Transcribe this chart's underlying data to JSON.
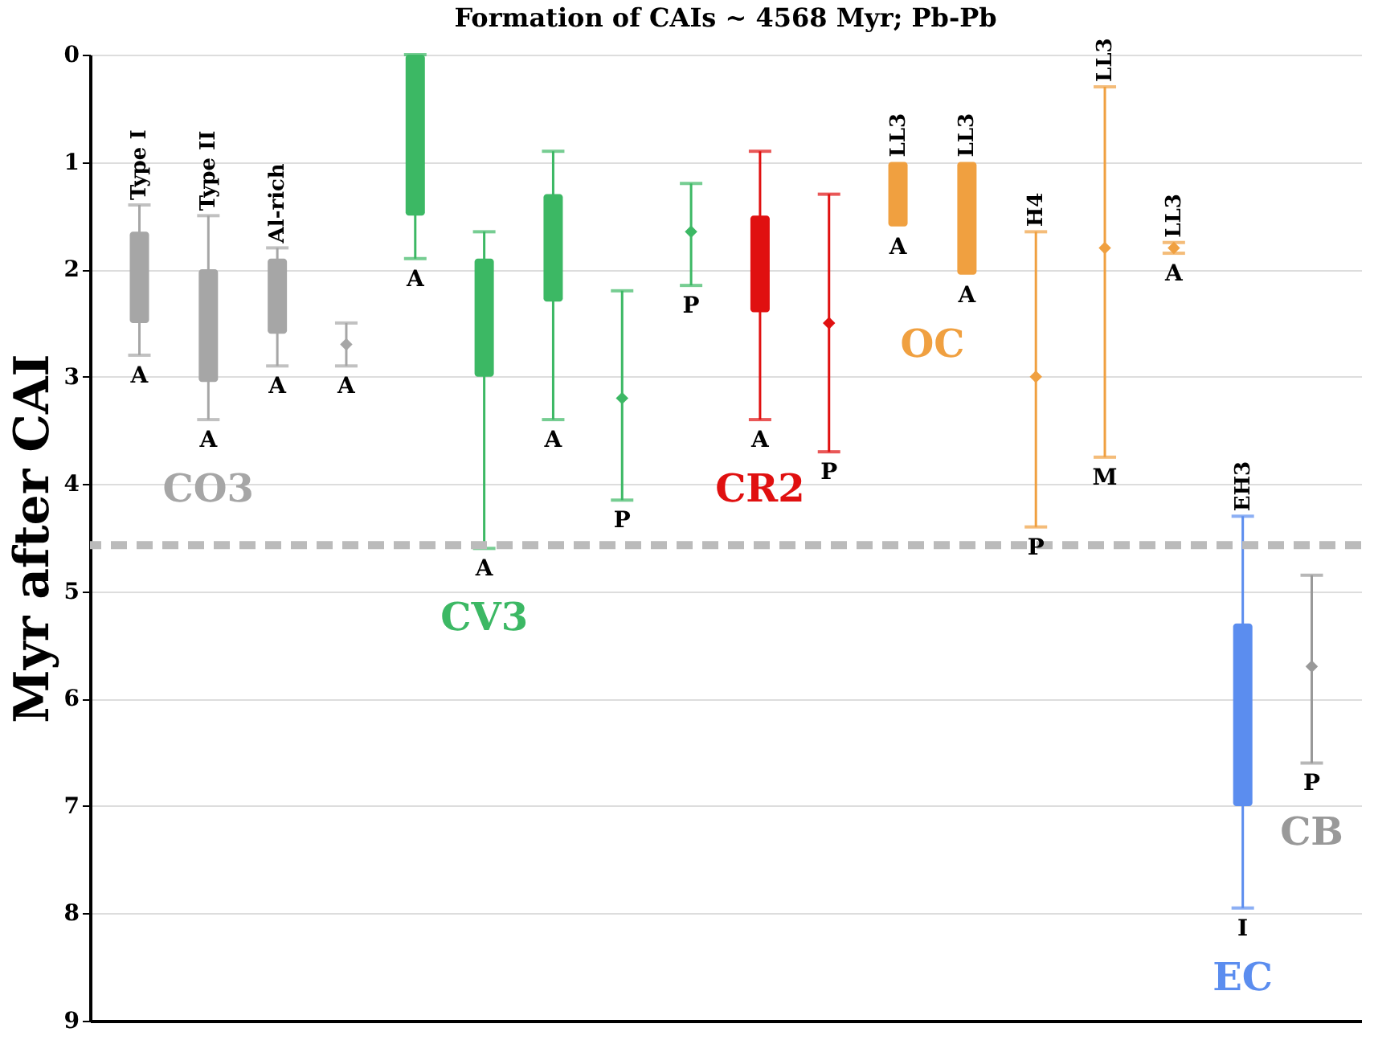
{
  "chart_data": {
    "type": "bar",
    "title": "Formation of CAIs ~ 4568 Myr; Pb-Pb",
    "ylabel": "Myr after CAI",
    "categories": [
      "Type I",
      "Type II",
      "Al-rich",
      null,
      null,
      null,
      null,
      null,
      null,
      null,
      null,
      "LL3",
      "LL3",
      "H4",
      "LL3",
      "LL3",
      "EH3",
      null
    ],
    "series": [
      {
        "name": "CO3",
        "color": "#a6a6a6",
        "base": [
          1.65,
          2.0,
          1.9,
          null,
          null,
          null,
          null,
          null,
          null,
          null,
          null,
          null,
          null,
          null,
          null,
          null,
          null,
          null
        ],
        "values": [
          0.85,
          1.05,
          0.7,
          null,
          null,
          null,
          null,
          null,
          null,
          null,
          null,
          null,
          null,
          null,
          null,
          null,
          null,
          null
        ],
        "errors": [
          [
            1.4,
            2.8
          ],
          [
            1.5,
            3.4
          ],
          [
            1.8,
            2.9
          ],
          null,
          null,
          null,
          null,
          null,
          null,
          null,
          null,
          null,
          null,
          null,
          null,
          null,
          null,
          null
        ]
      },
      {
        "type": "scatter",
        "color": "#a6a6a6",
        "values": [
          null,
          null,
          null,
          2.7,
          null,
          null,
          null,
          null,
          null,
          null,
          null,
          null,
          null,
          null,
          null,
          null,
          null,
          null
        ],
        "errors": [
          null,
          null,
          null,
          [
            2.5,
            2.9
          ],
          null,
          null,
          null,
          null,
          null,
          null,
          null,
          null,
          null,
          null,
          null,
          null,
          null,
          null
        ]
      },
      {
        "name": "CV3",
        "color": "#3cb864",
        "base": [
          null,
          null,
          null,
          null,
          0,
          1.9,
          1.3,
          null,
          null,
          null,
          null,
          null,
          null,
          null,
          null,
          null,
          null,
          null
        ],
        "values": [
          null,
          null,
          null,
          null,
          1.5,
          1.1,
          1.0,
          null,
          null,
          null,
          null,
          null,
          null,
          null,
          null,
          null,
          null,
          null
        ],
        "errors": [
          null,
          null,
          null,
          null,
          [
            0,
            1.9
          ],
          [
            1.65,
            4.6
          ],
          [
            0.9,
            3.4
          ],
          null,
          null,
          null,
          null,
          null,
          null,
          null,
          null,
          null,
          null,
          null
        ]
      },
      {
        "type": "scatter",
        "color": "#3cb864",
        "values": [
          null,
          null,
          null,
          null,
          null,
          null,
          null,
          3.2,
          1.65,
          null,
          null,
          null,
          null,
          null,
          null,
          null,
          null,
          null
        ],
        "errors": [
          null,
          null,
          null,
          null,
          null,
          null,
          null,
          [
            2.2,
            4.15
          ],
          [
            1.2,
            2.15
          ],
          null,
          null,
          null,
          null,
          null,
          null,
          null,
          null,
          null
        ]
      },
      {
        "name": "CR2",
        "color": "#e01010",
        "base": [
          null,
          null,
          null,
          null,
          null,
          null,
          null,
          null,
          null,
          1.5,
          null,
          null,
          null,
          null,
          null,
          null,
          null,
          null
        ],
        "values": [
          null,
          null,
          null,
          null,
          null,
          null,
          null,
          null,
          null,
          0.9,
          null,
          null,
          null,
          null,
          null,
          null,
          null,
          null
        ],
        "errors": [
          null,
          null,
          null,
          null,
          null,
          null,
          null,
          null,
          null,
          [
            0.9,
            3.4
          ],
          null,
          null,
          null,
          null,
          null,
          null,
          null,
          null
        ]
      },
      {
        "type": "scatter",
        "color": "#e01010",
        "values": [
          null,
          null,
          null,
          null,
          null,
          null,
          null,
          null,
          null,
          null,
          2.5,
          null,
          null,
          null,
          null,
          null,
          null,
          null
        ],
        "errors": [
          null,
          null,
          null,
          null,
          null,
          null,
          null,
          null,
          null,
          null,
          [
            1.3,
            3.7
          ],
          null,
          null,
          null,
          null,
          null,
          null,
          null
        ]
      },
      {
        "name": "OC",
        "color": "#f0a040",
        "base": [
          null,
          null,
          null,
          null,
          null,
          null,
          null,
          null,
          null,
          null,
          null,
          1.0,
          1.0,
          null,
          null,
          null,
          null,
          null
        ],
        "values": [
          null,
          null,
          null,
          null,
          null,
          null,
          null,
          null,
          null,
          null,
          null,
          0.6,
          1.05,
          null,
          null,
          null,
          null,
          null
        ]
      },
      {
        "type": "scatter",
        "color": "#f0a040",
        "values": [
          null,
          null,
          null,
          null,
          null,
          null,
          null,
          null,
          null,
          null,
          null,
          null,
          null,
          3.0,
          1.8,
          1.8,
          null,
          null
        ],
        "errors": [
          null,
          null,
          null,
          null,
          null,
          null,
          null,
          null,
          null,
          null,
          null,
          null,
          null,
          [
            1.65,
            4.4
          ],
          [
            0.3,
            3.75
          ],
          [
            1.75,
            1.85
          ],
          null,
          null
        ]
      },
      {
        "name": "EC",
        "color": "#5b8def",
        "base": [
          null,
          null,
          null,
          null,
          null,
          null,
          null,
          null,
          null,
          null,
          null,
          null,
          null,
          null,
          null,
          null,
          5.3,
          null
        ],
        "values": [
          null,
          null,
          null,
          null,
          null,
          null,
          null,
          null,
          null,
          null,
          null,
          null,
          null,
          null,
          null,
          null,
          1.7,
          null
        ],
        "errors": [
          null,
          null,
          null,
          null,
          null,
          null,
          null,
          null,
          null,
          null,
          null,
          null,
          null,
          null,
          null,
          null,
          [
            4.3,
            7.95
          ],
          null
        ]
      },
      {
        "name": "CB",
        "type": "scatter",
        "color": "#999999",
        "values": [
          null,
          null,
          null,
          null,
          null,
          null,
          null,
          null,
          null,
          null,
          null,
          null,
          null,
          null,
          null,
          null,
          null,
          5.7
        ],
        "errors": [
          null,
          null,
          null,
          null,
          null,
          null,
          null,
          null,
          null,
          null,
          null,
          null,
          null,
          null,
          null,
          null,
          null,
          [
            4.85,
            6.6
          ]
        ]
      }
    ],
    "annotations": [
      "A",
      "A",
      "A",
      "A",
      "A",
      "A",
      "A",
      "P",
      "P",
      "A",
      "P",
      "A",
      "A",
      "P",
      "M",
      "A",
      "I",
      "P"
    ],
    "ylim": [
      9,
      0
    ],
    "yticks": [
      0,
      1,
      2,
      3,
      4,
      5,
      6,
      7,
      8,
      9
    ],
    "grid": "y",
    "tick_labels": "y",
    "ref_lines": [
      {
        "axis": "y",
        "value": 4.57,
        "color": "#bbbbbb",
        "line_style": "dashed"
      }
    ]
  }
}
